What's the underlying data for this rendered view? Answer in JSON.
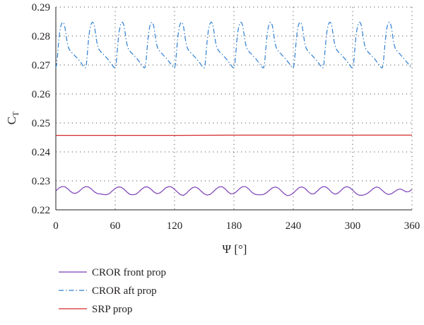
{
  "chart_data": {
    "type": "line",
    "xlabel": "Ψ [°]",
    "ylabel": {
      "main": "C",
      "sub": "T"
    },
    "xlim": [
      0,
      360
    ],
    "ylim": [
      0.22,
      0.29
    ],
    "xticks": [
      0,
      60,
      120,
      180,
      240,
      300,
      360
    ],
    "yticks": [
      0.22,
      0.23,
      0.24,
      0.25,
      0.26,
      0.27,
      0.28,
      0.29
    ],
    "ytick_labels": [
      "0.22",
      "0.23",
      "0.24",
      "0.25",
      "0.26",
      "0.27",
      "0.28",
      "0.29"
    ],
    "grid": true,
    "legend_position": "below",
    "series": [
      {
        "name": "CROR front prop",
        "color": "#7b3fb8",
        "dash": "solid",
        "x": [
          0,
          3,
          6,
          9,
          12,
          15,
          18,
          21,
          24,
          27,
          30,
          33,
          36,
          39,
          42,
          45,
          48,
          51,
          54,
          57,
          60,
          63,
          66,
          69,
          72,
          75,
          78,
          81,
          84,
          87,
          90,
          93,
          96,
          99,
          102,
          105,
          108,
          111,
          114,
          117,
          120,
          123,
          126,
          129,
          132,
          135,
          138,
          141,
          144,
          147,
          150,
          153,
          156,
          159,
          162,
          165,
          168,
          171,
          174,
          177,
          180,
          183,
          186,
          189,
          192,
          195,
          198,
          201,
          204,
          207,
          210,
          213,
          216,
          219,
          222,
          225,
          228,
          231,
          234,
          237,
          240,
          243,
          246,
          249,
          252,
          255,
          258,
          261,
          264,
          267,
          270,
          273,
          276,
          279,
          282,
          285,
          288,
          291,
          294,
          297,
          300,
          303,
          306,
          309,
          312,
          315,
          318,
          321,
          324,
          327,
          330,
          333,
          336,
          339,
          342,
          345,
          348,
          351,
          354,
          357,
          360
        ],
        "values": [
          0.2265,
          0.2275,
          0.228,
          0.228,
          0.2273,
          0.2263,
          0.2257,
          0.2258,
          0.2265,
          0.2275,
          0.228,
          0.2279,
          0.2272,
          0.2262,
          0.2256,
          0.2255,
          0.2253,
          0.2252,
          0.2256,
          0.2265,
          0.2274,
          0.2279,
          0.2278,
          0.2271,
          0.2261,
          0.2253,
          0.2252,
          0.2254,
          0.2262,
          0.2272,
          0.2279,
          0.2279,
          0.2272,
          0.2262,
          0.2256,
          0.2258,
          0.2266,
          0.2276,
          0.228,
          0.2279,
          0.2271,
          0.2261,
          0.2252,
          0.225,
          0.2257,
          0.2268,
          0.2276,
          0.2279,
          0.2274,
          0.2264,
          0.2255,
          0.2251,
          0.2253,
          0.2262,
          0.2272,
          0.2279,
          0.228,
          0.2273,
          0.2262,
          0.2255,
          0.2256,
          0.2264,
          0.2274,
          0.228,
          0.228,
          0.2272,
          0.2261,
          0.2254,
          0.2252,
          0.2252,
          0.2253,
          0.2259,
          0.2268,
          0.2276,
          0.2279,
          0.2275,
          0.2265,
          0.2255,
          0.2249,
          0.2251,
          0.2258,
          0.2268,
          0.2277,
          0.2279,
          0.2274,
          0.2263,
          0.2255,
          0.2255,
          0.2264,
          0.2274,
          0.228,
          0.2279,
          0.2271,
          0.226,
          0.2254,
          0.2257,
          0.2266,
          0.2276,
          0.228,
          0.2277,
          0.2268,
          0.2258,
          0.2251,
          0.225,
          0.2252,
          0.2257,
          0.2265,
          0.2274,
          0.2279,
          0.2276,
          0.2267,
          0.2258,
          0.2253,
          0.2255,
          0.2262,
          0.2269,
          0.2272,
          0.2268,
          0.2262,
          0.2263,
          0.227
        ]
      },
      {
        "name": "CROR aft prop",
        "color": "#2f7fd1",
        "dash": "dashdot",
        "x": [
          0,
          1,
          2,
          3,
          4,
          5,
          6,
          7,
          8,
          9,
          10,
          11,
          12,
          13,
          14,
          15,
          16,
          17,
          18,
          19,
          20,
          21,
          22,
          23,
          24,
          25,
          26,
          27,
          28,
          29,
          30,
          31,
          32,
          33,
          34,
          35,
          36,
          37,
          38,
          39,
          40,
          41,
          42,
          43,
          44,
          45,
          46,
          47,
          48,
          49,
          50,
          51,
          52,
          53,
          54,
          55,
          56,
          57,
          58,
          59,
          60,
          61,
          62,
          63,
          64,
          65,
          66,
          67,
          68,
          69,
          70,
          71,
          72,
          73,
          74,
          75,
          76,
          77,
          78,
          79,
          80,
          81,
          82,
          83,
          84,
          85,
          86,
          87,
          88,
          89,
          90,
          91,
          92,
          93,
          94,
          95,
          96,
          97,
          98,
          99,
          100,
          101,
          102,
          103,
          104,
          105,
          106,
          107,
          108,
          109,
          110,
          111,
          112,
          113,
          114,
          115,
          116,
          117,
          118,
          119,
          120,
          121,
          122,
          123,
          124,
          125,
          126,
          127,
          128,
          129,
          130,
          131,
          132,
          133,
          134,
          135,
          136,
          137,
          138,
          139,
          140,
          141,
          142,
          143,
          144,
          145,
          146,
          147,
          148,
          149,
          150,
          151,
          152,
          153,
          154,
          155,
          156,
          157,
          158,
          159,
          160,
          161,
          162,
          163,
          164,
          165,
          166,
          167,
          168,
          169,
          170,
          171,
          172,
          173,
          174,
          175,
          176,
          177,
          178,
          179,
          180,
          181,
          182,
          183,
          184,
          185,
          186,
          187,
          188,
          189,
          190,
          191,
          192,
          193,
          194,
          195,
          196,
          197,
          198,
          199,
          200,
          201,
          202,
          203,
          204,
          205,
          206,
          207,
          208,
          209,
          210,
          211,
          212,
          213,
          214,
          215,
          216,
          217,
          218,
          219,
          220,
          221,
          222,
          223,
          224,
          225,
          226,
          227,
          228,
          229,
          230,
          231,
          232,
          233,
          234,
          235,
          236,
          237,
          238,
          239,
          240,
          241,
          242,
          243,
          244,
          245,
          246,
          247,
          248,
          249,
          250,
          251,
          252,
          253,
          254,
          255,
          256,
          257,
          258,
          259,
          260,
          261,
          262,
          263,
          264,
          265,
          266,
          267,
          268,
          269,
          270,
          271,
          272,
          273,
          274,
          275,
          276,
          277,
          278,
          279,
          280,
          281,
          282,
          283,
          284,
          285,
          286,
          287,
          288,
          289,
          290,
          291,
          292,
          293,
          294,
          295,
          296,
          297,
          298,
          299,
          300,
          301,
          302,
          303,
          304,
          305,
          306,
          307,
          308,
          309,
          310,
          311,
          312,
          313,
          314,
          315,
          316,
          317,
          318,
          319,
          320,
          321,
          322,
          323,
          324,
          325,
          326,
          327,
          328,
          329,
          330,
          331,
          332,
          333,
          334,
          335,
          336,
          337,
          338,
          339,
          340,
          341,
          342,
          343,
          344,
          345,
          346,
          347,
          348,
          349,
          350,
          351,
          352,
          353,
          354,
          355,
          356,
          357,
          358,
          359,
          360
        ],
        "values": [
          0.269,
          0.2704,
          0.2745,
          0.2785,
          0.2815,
          0.2834,
          0.2844,
          0.2848,
          0.2845,
          0.2834,
          0.2812,
          0.2788,
          0.277,
          0.2758,
          0.2752,
          0.2748,
          0.2743,
          0.274,
          0.2737,
          0.2733,
          0.2729,
          0.2726,
          0.2722,
          0.2718,
          0.2713,
          0.2709,
          0.2705,
          0.27,
          0.2695,
          0.2691,
          0.269,
          0.2705,
          0.2745,
          0.2785,
          0.2815,
          0.2834,
          0.2844,
          0.2848,
          0.2845,
          0.2834,
          0.2812,
          0.2788,
          0.277,
          0.2758,
          0.2752,
          0.2748,
          0.2743,
          0.274,
          0.2737,
          0.2733,
          0.2729,
          0.2726,
          0.2722,
          0.2718,
          0.2713,
          0.2709,
          0.2705,
          0.27,
          0.2695,
          0.2691,
          0.269,
          0.2704,
          0.2745,
          0.2785,
          0.2815,
          0.2834,
          0.2844,
          0.2848,
          0.2845,
          0.2834,
          0.2812,
          0.2788,
          0.277,
          0.2758,
          0.2752,
          0.2748,
          0.2743,
          0.274,
          0.2737,
          0.2733,
          0.2729,
          0.2726,
          0.2722,
          0.2718,
          0.2713,
          0.2709,
          0.2705,
          0.27,
          0.2695,
          0.2691,
          0.269,
          0.2705,
          0.2745,
          0.2785,
          0.2815,
          0.2834,
          0.2844,
          0.2848,
          0.2845,
          0.2834,
          0.2812,
          0.2788,
          0.277,
          0.2758,
          0.2752,
          0.2748,
          0.2743,
          0.274,
          0.2737,
          0.2733,
          0.2729,
          0.2726,
          0.2722,
          0.2718,
          0.2713,
          0.2709,
          0.2705,
          0.27,
          0.2695,
          0.2691,
          0.269,
          0.2704,
          0.2745,
          0.2785,
          0.2815,
          0.2834,
          0.2844,
          0.2848,
          0.2845,
          0.2834,
          0.2812,
          0.2788,
          0.277,
          0.2758,
          0.2752,
          0.2748,
          0.2743,
          0.274,
          0.2737,
          0.2733,
          0.2729,
          0.2726,
          0.2722,
          0.2718,
          0.2713,
          0.2709,
          0.2705,
          0.27,
          0.2695,
          0.2691,
          0.269,
          0.2705,
          0.2745,
          0.2785,
          0.2815,
          0.2834,
          0.2844,
          0.2848,
          0.2845,
          0.2834,
          0.2812,
          0.2788,
          0.277,
          0.2758,
          0.2752,
          0.2748,
          0.2743,
          0.274,
          0.2737,
          0.2733,
          0.2729,
          0.2726,
          0.2722,
          0.2718,
          0.2713,
          0.2709,
          0.2705,
          0.27,
          0.2695,
          0.2691,
          0.269,
          0.2704,
          0.2745,
          0.2785,
          0.2815,
          0.2834,
          0.2844,
          0.2848,
          0.2845,
          0.2834,
          0.2812,
          0.2788,
          0.277,
          0.2758,
          0.2752,
          0.2748,
          0.2743,
          0.274,
          0.2737,
          0.2733,
          0.2729,
          0.2726,
          0.2722,
          0.2718,
          0.2713,
          0.2709,
          0.2705,
          0.27,
          0.2695,
          0.2691,
          0.269,
          0.2705,
          0.2745,
          0.2785,
          0.2815,
          0.2834,
          0.2844,
          0.2848,
          0.2845,
          0.2834,
          0.2812,
          0.2788,
          0.277,
          0.2758,
          0.2752,
          0.2748,
          0.2743,
          0.274,
          0.2737,
          0.2733,
          0.2729,
          0.2726,
          0.2722,
          0.2718,
          0.2713,
          0.2709,
          0.2705,
          0.27,
          0.2695,
          0.2691,
          0.269,
          0.2704,
          0.2745,
          0.2785,
          0.2815,
          0.2834,
          0.2844,
          0.2848,
          0.2845,
          0.2834,
          0.2812,
          0.2788,
          0.277,
          0.2758,
          0.2752,
          0.2748,
          0.2743,
          0.274,
          0.2737,
          0.2733,
          0.2729,
          0.2726,
          0.2722,
          0.2718,
          0.2713,
          0.2709,
          0.2705,
          0.27,
          0.2695,
          0.2691,
          0.269,
          0.2705,
          0.2745,
          0.2785,
          0.2815,
          0.2834,
          0.2844,
          0.2848,
          0.2845,
          0.2834,
          0.2812,
          0.2788,
          0.277,
          0.2758,
          0.2752,
          0.2748,
          0.2743,
          0.274,
          0.2737,
          0.2733,
          0.2729,
          0.2726,
          0.2722,
          0.2718,
          0.2713,
          0.2709,
          0.2705,
          0.27,
          0.2695,
          0.2691,
          0.269,
          0.2704,
          0.2745,
          0.2785,
          0.2815,
          0.2834,
          0.2844,
          0.2848,
          0.2845,
          0.2834,
          0.2812,
          0.2788,
          0.277,
          0.2758,
          0.2752,
          0.2748,
          0.2743,
          0.274,
          0.2737,
          0.2733,
          0.2729,
          0.2726,
          0.2722,
          0.2718,
          0.2713,
          0.2709,
          0.2705,
          0.27,
          0.2695,
          0.2691,
          0.269,
          0.2705,
          0.2745,
          0.2785,
          0.2815,
          0.2834,
          0.2844,
          0.2848,
          0.2845,
          0.2834,
          0.2812,
          0.2788,
          0.277,
          0.2758,
          0.2752,
          0.2748,
          0.2743,
          0.274,
          0.2737,
          0.2733,
          0.2729,
          0.2726,
          0.2722,
          0.2718,
          0.2713,
          0.2709,
          0.2705,
          0.27,
          0.2695,
          0.2691,
          0.269
        ]
      },
      {
        "name": "SRP prop",
        "color": "#d42b2b",
        "dash": "solid",
        "x": [
          0,
          60,
          120,
          180,
          240,
          300,
          360
        ],
        "values": [
          0.2457,
          0.2457,
          0.2457,
          0.2458,
          0.2458,
          0.2458,
          0.2458
        ]
      }
    ]
  }
}
